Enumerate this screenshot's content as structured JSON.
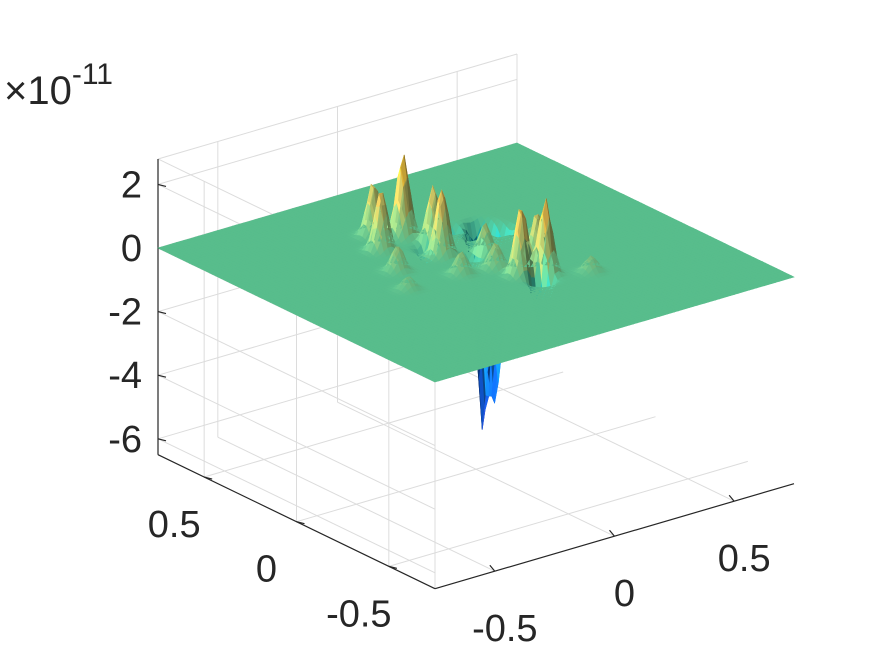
{
  "chart_data": {
    "type": "surface",
    "title": "",
    "xlabel": "",
    "ylabel": "",
    "zlabel": "",
    "z_multiplier_label": {
      "base": "×10",
      "exponent": "-11"
    },
    "x_ticks": [
      "-0.5",
      "0",
      "0.5"
    ],
    "y_ticks": [
      "-0.5",
      "0",
      "0.5"
    ],
    "z_ticks": [
      "2",
      "0",
      "-2",
      "-4",
      "-6"
    ],
    "x_tick_values": [
      -0.5,
      0,
      0.5
    ],
    "y_tick_values": [
      -0.5,
      0,
      0.5
    ],
    "z_tick_values": [
      2,
      0,
      -2,
      -4,
      -6
    ],
    "xlim": [
      -0.75,
      0.75
    ],
    "ylim": [
      -0.75,
      0.75
    ],
    "zlim": [
      -6.5,
      2.8
    ],
    "z_scale": 1e-11,
    "grid": true,
    "colormap": "parula",
    "peaks": [
      {
        "x": -0.05,
        "y": 0.33,
        "z": 2.6
      },
      {
        "x": 0.0,
        "y": 0.23,
        "z": 1.8
      },
      {
        "x": -0.05,
        "y": 0.12,
        "z": 2.1
      },
      {
        "x": -0.18,
        "y": 0.28,
        "z": 1.9
      },
      {
        "x": -0.12,
        "y": 0.4,
        "z": 1.7
      },
      {
        "x": 0.07,
        "y": 0.05,
        "z": 1.2
      },
      {
        "x": 0.12,
        "y": -0.22,
        "z": 2.5
      },
      {
        "x": 0.05,
        "y": -0.18,
        "z": 2.2
      },
      {
        "x": 0.18,
        "y": -0.1,
        "z": 1.5
      },
      {
        "x": 0.02,
        "y": -0.08,
        "z": 0.8
      },
      {
        "x": -0.25,
        "y": 0.1,
        "z": 0.8
      },
      {
        "x": 0.15,
        "y": 0.15,
        "z": 0.6
      },
      {
        "x": -0.1,
        "y": -0.05,
        "z": 0.7
      },
      {
        "x": 0.28,
        "y": 0.05,
        "z": 0.5
      },
      {
        "x": 0.1,
        "y": 0.32,
        "z": 0.5
      },
      {
        "x": -0.32,
        "y": -0.05,
        "z": 0.4
      },
      {
        "x": 0.25,
        "y": -0.3,
        "z": 0.5
      },
      {
        "x": 0.22,
        "y": 0.25,
        "z": -6.2
      },
      {
        "x": 0.24,
        "y": 0.2,
        "z": -5.2
      },
      {
        "x": 0.16,
        "y": 0.18,
        "z": -3.0
      },
      {
        "x": 0.08,
        "y": -0.25,
        "z": -1.8
      },
      {
        "x": 0.12,
        "y": 0.3,
        "z": -1.6
      },
      {
        "x": 0.04,
        "y": 0.05,
        "z": -0.8
      },
      {
        "x": -0.05,
        "y": 0.2,
        "z": -0.6
      },
      {
        "x": 0.3,
        "y": 0.1,
        "z": -1.0
      }
    ]
  }
}
